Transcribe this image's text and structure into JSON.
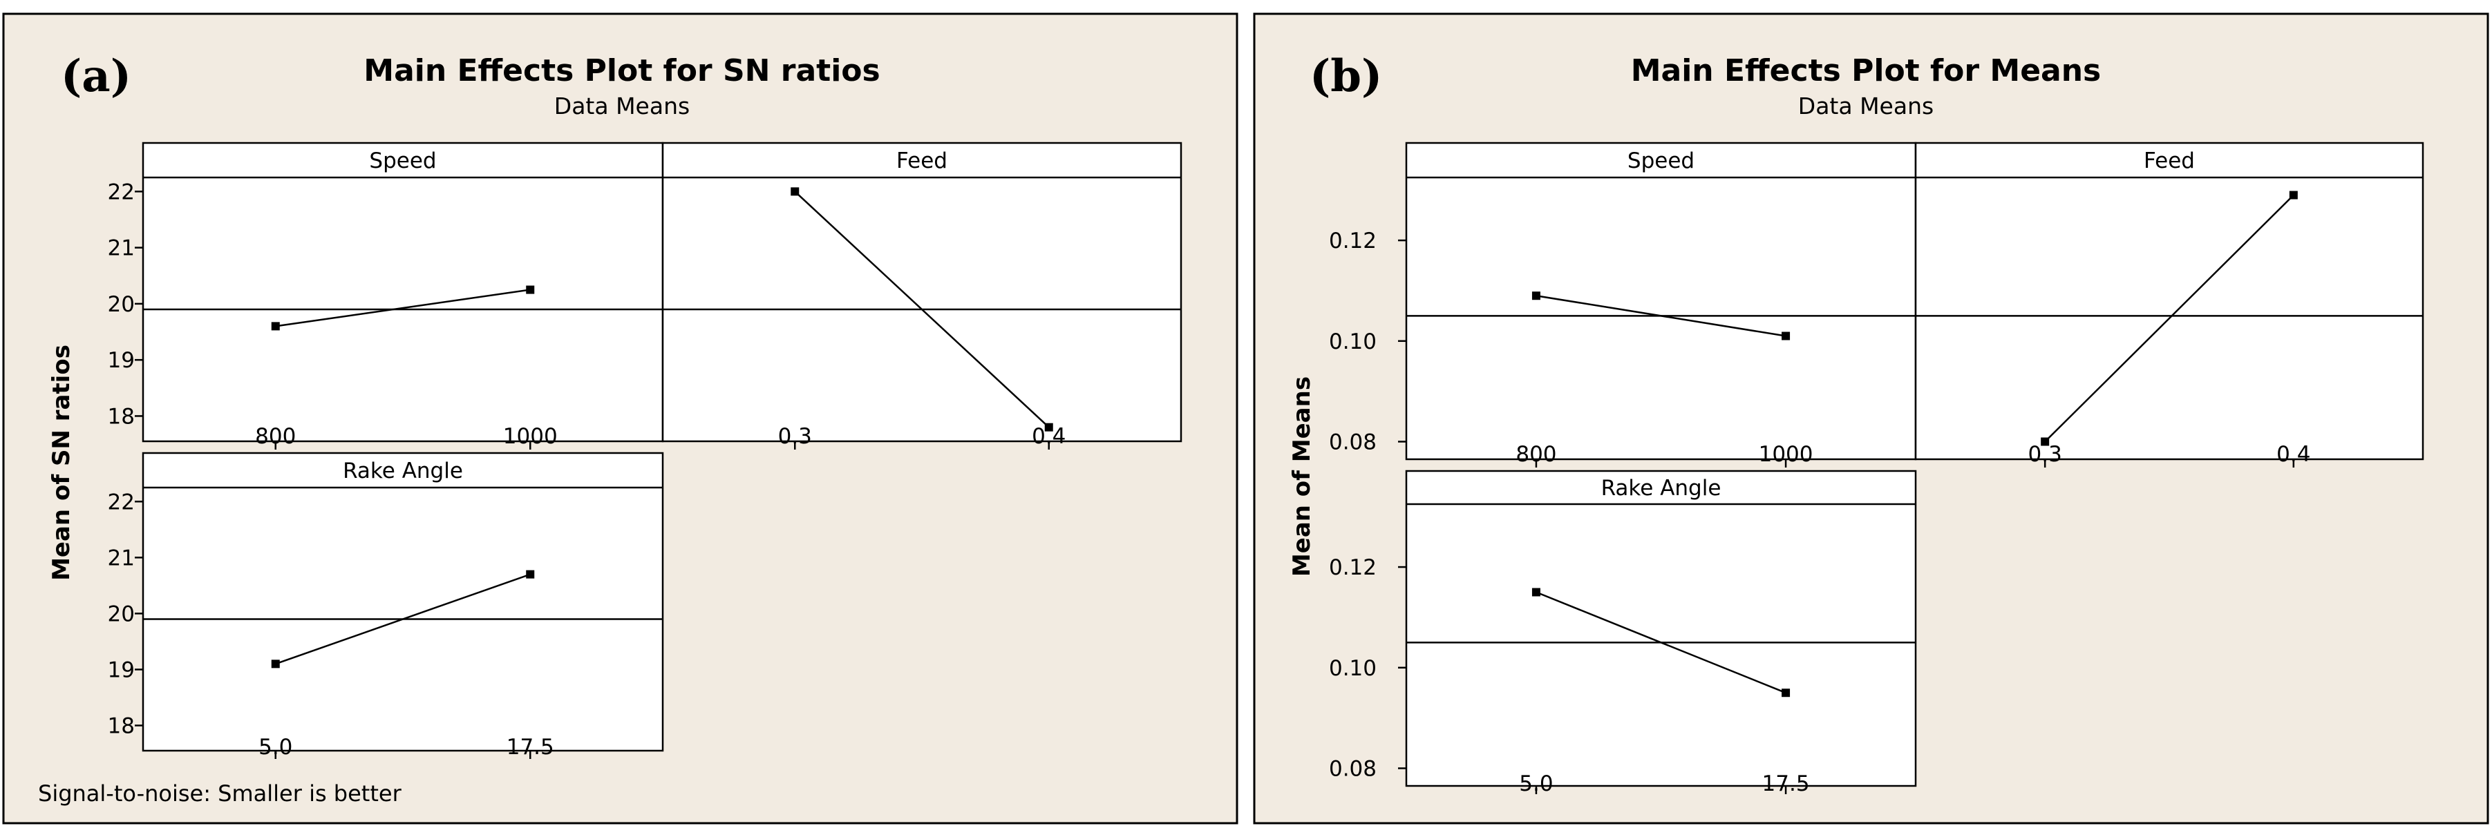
{
  "colors": {
    "panel_background": "#f2ebe1",
    "plot_background": "#ffffff",
    "line": "#000000"
  },
  "chart_data": [
    {
      "type": "line",
      "tag": "(a)",
      "title": "Main Effects Plot for SN ratios",
      "subtitle": "Data Means",
      "ylabel": "Mean of SN ratios",
      "ylim": [
        17.55,
        22.25
      ],
      "yticks": [
        "18",
        "19",
        "20",
        "21",
        "22"
      ],
      "mean_line": 19.9,
      "footnote": "Signal-to-noise: Smaller is better",
      "facets": [
        {
          "name": "Speed",
          "categories": [
            "800",
            "1000"
          ],
          "values": [
            19.6,
            20.25
          ]
        },
        {
          "name": "Feed",
          "categories": [
            "0.3",
            "0.4"
          ],
          "values": [
            22.0,
            17.8
          ]
        },
        {
          "name": "Rake Angle",
          "categories": [
            "5.0",
            "17.5"
          ],
          "values": [
            19.1,
            20.7
          ]
        }
      ]
    },
    {
      "type": "line",
      "tag": "(b)",
      "title": "Main Effects Plot for Means",
      "subtitle": "Data Means",
      "ylabel": "Mean of Means",
      "ylim": [
        0.0765,
        0.1325
      ],
      "yticks": [
        "0.08",
        "0.10",
        "0.12"
      ],
      "mean_line": 0.105,
      "facets": [
        {
          "name": "Speed",
          "categories": [
            "800",
            "1000"
          ],
          "values": [
            0.109,
            0.101
          ]
        },
        {
          "name": "Feed",
          "categories": [
            "0.3",
            "0.4"
          ],
          "values": [
            0.08,
            0.129
          ]
        },
        {
          "name": "Rake Angle",
          "categories": [
            "5.0",
            "17.5"
          ],
          "values": [
            0.115,
            0.095
          ]
        }
      ]
    }
  ]
}
